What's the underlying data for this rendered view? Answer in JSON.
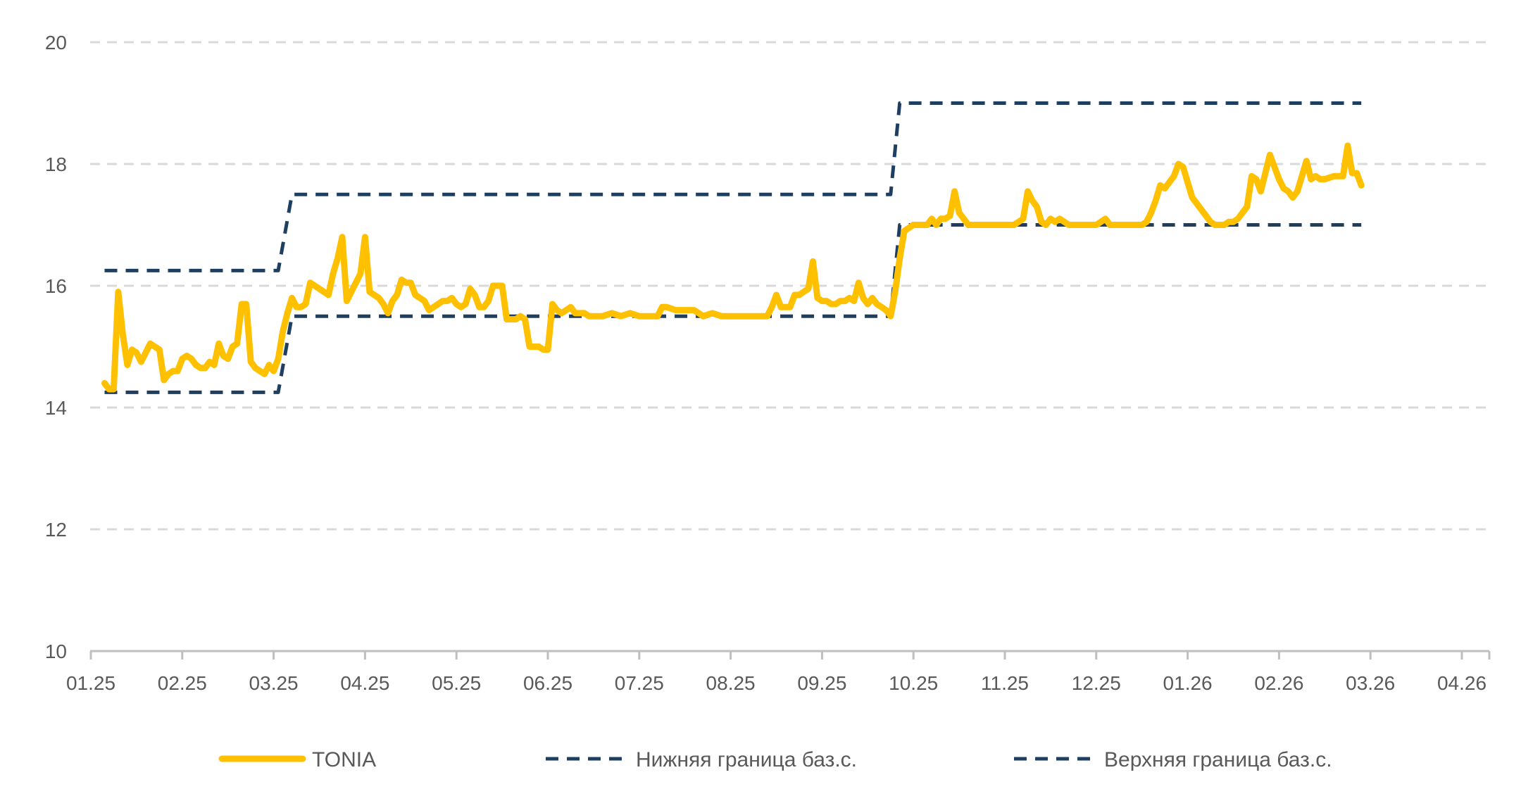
{
  "chart_data": {
    "type": "line",
    "title": "",
    "xlabel": "",
    "ylabel": "",
    "ylim": [
      10,
      20
    ],
    "y_ticks": [
      10,
      12,
      14,
      16,
      18,
      20
    ],
    "x_ticks": [
      "01.25",
      "02.25",
      "03.25",
      "04.25",
      "05.25",
      "06.25",
      "07.25",
      "08.25",
      "09.25",
      "10.25",
      "11.25",
      "12.25",
      "01.26",
      "02.26",
      "03.26",
      "04.26"
    ],
    "grid": "horizontal-dashed",
    "legend_position": "bottom",
    "x_unit": "month-index (0 = 01.25, 15 = 04.26)",
    "colors": {
      "tonia": "#FFC000",
      "lower": "#1F3F60",
      "upper": "#1F3F60",
      "grid": "#D9D9D9",
      "axis": "#BFBFBF",
      "text": "#595959"
    },
    "series": [
      {
        "name": "TONIA",
        "style": "solid",
        "points": [
          [
            0.15,
            14.4
          ],
          [
            0.2,
            14.3
          ],
          [
            0.25,
            14.3
          ],
          [
            0.3,
            15.9
          ],
          [
            0.35,
            15.2
          ],
          [
            0.4,
            14.7
          ],
          [
            0.45,
            14.95
          ],
          [
            0.5,
            14.9
          ],
          [
            0.55,
            14.75
          ],
          [
            0.6,
            14.9
          ],
          [
            0.65,
            15.05
          ],
          [
            0.7,
            15.0
          ],
          [
            0.75,
            14.95
          ],
          [
            0.8,
            14.45
          ],
          [
            0.85,
            14.55
          ],
          [
            0.9,
            14.6
          ],
          [
            0.95,
            14.6
          ],
          [
            1.0,
            14.8
          ],
          [
            1.05,
            14.85
          ],
          [
            1.1,
            14.8
          ],
          [
            1.15,
            14.7
          ],
          [
            1.2,
            14.65
          ],
          [
            1.25,
            14.65
          ],
          [
            1.3,
            14.75
          ],
          [
            1.35,
            14.7
          ],
          [
            1.4,
            15.05
          ],
          [
            1.45,
            14.85
          ],
          [
            1.5,
            14.8
          ],
          [
            1.55,
            15.0
          ],
          [
            1.6,
            15.05
          ],
          [
            1.65,
            15.7
          ],
          [
            1.7,
            15.7
          ],
          [
            1.75,
            14.75
          ],
          [
            1.8,
            14.65
          ],
          [
            1.85,
            14.6
          ],
          [
            1.9,
            14.55
          ],
          [
            1.95,
            14.7
          ],
          [
            2.0,
            14.6
          ],
          [
            2.05,
            14.8
          ],
          [
            2.1,
            15.25
          ],
          [
            2.15,
            15.55
          ],
          [
            2.2,
            15.8
          ],
          [
            2.25,
            15.65
          ],
          [
            2.3,
            15.65
          ],
          [
            2.35,
            15.7
          ],
          [
            2.4,
            16.05
          ],
          [
            2.45,
            16.0
          ],
          [
            2.5,
            15.95
          ],
          [
            2.55,
            15.9
          ],
          [
            2.6,
            15.85
          ],
          [
            2.65,
            16.2
          ],
          [
            2.7,
            16.45
          ],
          [
            2.75,
            16.8
          ],
          [
            2.8,
            15.75
          ],
          [
            2.85,
            15.9
          ],
          [
            2.9,
            16.05
          ],
          [
            2.95,
            16.2
          ],
          [
            3.0,
            16.8
          ],
          [
            3.05,
            15.9
          ],
          [
            3.1,
            15.85
          ],
          [
            3.15,
            15.8
          ],
          [
            3.2,
            15.7
          ],
          [
            3.25,
            15.55
          ],
          [
            3.3,
            15.75
          ],
          [
            3.35,
            15.85
          ],
          [
            3.4,
            16.1
          ],
          [
            3.45,
            16.05
          ],
          [
            3.5,
            16.05
          ],
          [
            3.55,
            15.85
          ],
          [
            3.6,
            15.8
          ],
          [
            3.65,
            15.75
          ],
          [
            3.7,
            15.6
          ],
          [
            3.75,
            15.65
          ],
          [
            3.8,
            15.7
          ],
          [
            3.85,
            15.75
          ],
          [
            3.9,
            15.75
          ],
          [
            3.95,
            15.8
          ],
          [
            4.0,
            15.7
          ],
          [
            4.05,
            15.65
          ],
          [
            4.1,
            15.7
          ],
          [
            4.15,
            15.95
          ],
          [
            4.2,
            15.85
          ],
          [
            4.25,
            15.65
          ],
          [
            4.3,
            15.65
          ],
          [
            4.35,
            15.75
          ],
          [
            4.4,
            16.0
          ],
          [
            4.45,
            16.0
          ],
          [
            4.5,
            16.0
          ],
          [
            4.55,
            15.45
          ],
          [
            4.6,
            15.45
          ],
          [
            4.65,
            15.45
          ],
          [
            4.7,
            15.5
          ],
          [
            4.75,
            15.45
          ],
          [
            4.8,
            15.0
          ],
          [
            4.85,
            15.0
          ],
          [
            4.9,
            15.0
          ],
          [
            4.95,
            14.95
          ],
          [
            5.0,
            14.95
          ],
          [
            5.05,
            15.7
          ],
          [
            5.1,
            15.6
          ],
          [
            5.15,
            15.55
          ],
          [
            5.2,
            15.6
          ],
          [
            5.25,
            15.65
          ],
          [
            5.3,
            15.55
          ],
          [
            5.35,
            15.55
          ],
          [
            5.4,
            15.55
          ],
          [
            5.45,
            15.5
          ],
          [
            5.5,
            15.5
          ],
          [
            5.6,
            15.5
          ],
          [
            5.7,
            15.55
          ],
          [
            5.8,
            15.5
          ],
          [
            5.9,
            15.55
          ],
          [
            6.0,
            15.5
          ],
          [
            6.1,
            15.5
          ],
          [
            6.2,
            15.5
          ],
          [
            6.25,
            15.65
          ],
          [
            6.3,
            15.65
          ],
          [
            6.4,
            15.6
          ],
          [
            6.5,
            15.6
          ],
          [
            6.6,
            15.6
          ],
          [
            6.7,
            15.5
          ],
          [
            6.8,
            15.55
          ],
          [
            6.9,
            15.5
          ],
          [
            7.0,
            15.5
          ],
          [
            7.1,
            15.5
          ],
          [
            7.2,
            15.5
          ],
          [
            7.3,
            15.5
          ],
          [
            7.4,
            15.5
          ],
          [
            7.45,
            15.65
          ],
          [
            7.5,
            15.85
          ],
          [
            7.55,
            15.65
          ],
          [
            7.6,
            15.65
          ],
          [
            7.65,
            15.65
          ],
          [
            7.7,
            15.85
          ],
          [
            7.75,
            15.85
          ],
          [
            7.8,
            15.9
          ],
          [
            7.85,
            15.95
          ],
          [
            7.9,
            16.4
          ],
          [
            7.95,
            15.8
          ],
          [
            8.0,
            15.75
          ],
          [
            8.05,
            15.75
          ],
          [
            8.1,
            15.7
          ],
          [
            8.15,
            15.7
          ],
          [
            8.2,
            15.75
          ],
          [
            8.25,
            15.75
          ],
          [
            8.3,
            15.8
          ],
          [
            8.35,
            15.75
          ],
          [
            8.4,
            16.05
          ],
          [
            8.45,
            15.8
          ],
          [
            8.5,
            15.7
          ],
          [
            8.55,
            15.8
          ],
          [
            8.6,
            15.7
          ],
          [
            8.65,
            15.65
          ],
          [
            8.7,
            15.6
          ],
          [
            8.75,
            15.5
          ],
          [
            8.8,
            15.9
          ],
          [
            8.85,
            16.45
          ],
          [
            8.9,
            16.9
          ],
          [
            8.95,
            16.95
          ],
          [
            9.0,
            17.0
          ],
          [
            9.05,
            17.0
          ],
          [
            9.1,
            17.0
          ],
          [
            9.15,
            17.0
          ],
          [
            9.2,
            17.1
          ],
          [
            9.25,
            17.0
          ],
          [
            9.3,
            17.1
          ],
          [
            9.35,
            17.1
          ],
          [
            9.4,
            17.15
          ],
          [
            9.45,
            17.55
          ],
          [
            9.5,
            17.2
          ],
          [
            9.55,
            17.1
          ],
          [
            9.6,
            17.0
          ],
          [
            9.65,
            17.0
          ],
          [
            9.7,
            17.0
          ],
          [
            9.8,
            17.0
          ],
          [
            9.9,
            17.0
          ],
          [
            10.0,
            17.0
          ],
          [
            10.1,
            17.0
          ],
          [
            10.15,
            17.05
          ],
          [
            10.2,
            17.1
          ],
          [
            10.25,
            17.55
          ],
          [
            10.3,
            17.4
          ],
          [
            10.35,
            17.3
          ],
          [
            10.4,
            17.05
          ],
          [
            10.45,
            17.0
          ],
          [
            10.5,
            17.1
          ],
          [
            10.55,
            17.05
          ],
          [
            10.6,
            17.1
          ],
          [
            10.65,
            17.05
          ],
          [
            10.7,
            17.0
          ],
          [
            10.8,
            17.0
          ],
          [
            10.9,
            17.0
          ],
          [
            11.0,
            17.0
          ],
          [
            11.05,
            17.05
          ],
          [
            11.1,
            17.1
          ],
          [
            11.15,
            17.0
          ],
          [
            11.2,
            17.0
          ],
          [
            11.3,
            17.0
          ],
          [
            11.4,
            17.0
          ],
          [
            11.5,
            17.0
          ],
          [
            11.55,
            17.05
          ],
          [
            11.6,
            17.2
          ],
          [
            11.65,
            17.4
          ],
          [
            11.7,
            17.65
          ],
          [
            11.75,
            17.6
          ],
          [
            11.8,
            17.7
          ],
          [
            11.85,
            17.8
          ],
          [
            11.9,
            18.0
          ],
          [
            11.95,
            17.95
          ],
          [
            12.0,
            17.7
          ],
          [
            12.05,
            17.45
          ],
          [
            12.1,
            17.35
          ],
          [
            12.15,
            17.25
          ],
          [
            12.2,
            17.15
          ],
          [
            12.25,
            17.05
          ],
          [
            12.3,
            17.0
          ],
          [
            12.4,
            17.0
          ],
          [
            12.45,
            17.05
          ],
          [
            12.5,
            17.05
          ],
          [
            12.55,
            17.1
          ],
          [
            12.6,
            17.2
          ],
          [
            12.65,
            17.3
          ],
          [
            12.7,
            17.8
          ],
          [
            12.75,
            17.75
          ],
          [
            12.8,
            17.55
          ],
          [
            12.85,
            17.85
          ],
          [
            12.9,
            18.15
          ],
          [
            12.95,
            17.95
          ],
          [
            13.0,
            17.75
          ],
          [
            13.05,
            17.6
          ],
          [
            13.1,
            17.55
          ],
          [
            13.15,
            17.45
          ],
          [
            13.2,
            17.55
          ],
          [
            13.25,
            17.8
          ],
          [
            13.3,
            18.05
          ],
          [
            13.35,
            17.75
          ],
          [
            13.4,
            17.8
          ],
          [
            13.45,
            17.75
          ],
          [
            13.5,
            17.75
          ],
          [
            13.6,
            17.8
          ],
          [
            13.7,
            17.8
          ],
          [
            13.75,
            18.3
          ],
          [
            13.8,
            17.85
          ],
          [
            13.85,
            17.85
          ],
          [
            13.9,
            17.65
          ]
        ]
      },
      {
        "name": "Нижняя граница баз.с.",
        "style": "dashed",
        "points": [
          [
            0.15,
            14.25
          ],
          [
            2.05,
            14.25
          ],
          [
            2.2,
            15.5
          ],
          [
            8.75,
            15.5
          ],
          [
            8.85,
            17.0
          ],
          [
            13.9,
            17.0
          ]
        ]
      },
      {
        "name": "Верхняя граница баз.с.",
        "style": "dashed",
        "points": [
          [
            0.15,
            16.25
          ],
          [
            2.05,
            16.25
          ],
          [
            2.2,
            17.5
          ],
          [
            8.75,
            17.5
          ],
          [
            8.85,
            19.0
          ],
          [
            13.9,
            19.0
          ]
        ]
      }
    ]
  }
}
